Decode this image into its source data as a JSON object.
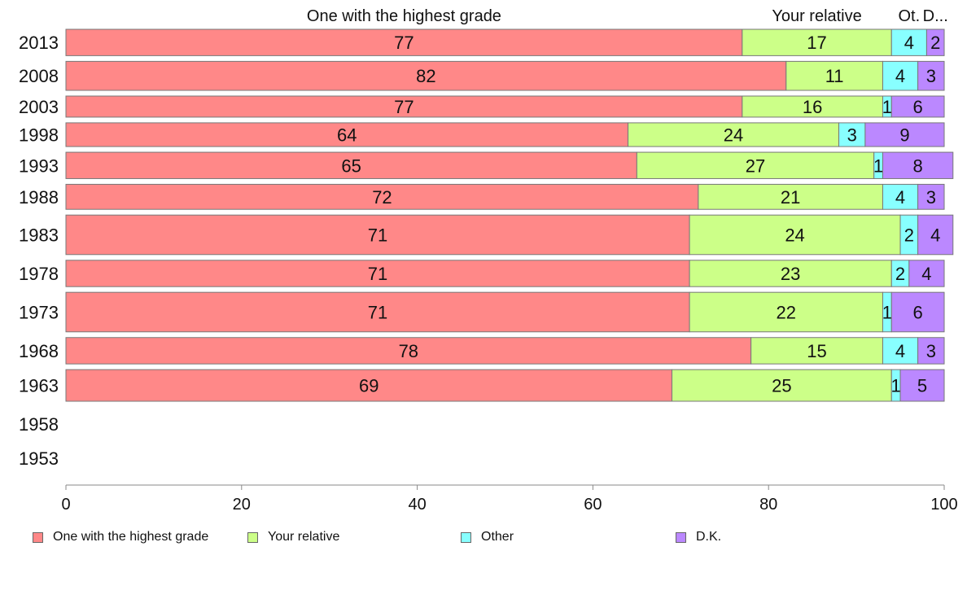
{
  "chart_data": {
    "type": "bar",
    "orientation": "horizontal",
    "stacked": true,
    "categories": [
      "2013",
      "2008",
      "2003",
      "1998",
      "1993",
      "1988",
      "1983",
      "1978",
      "1973",
      "1968",
      "1963",
      "1958",
      "1953"
    ],
    "series": [
      {
        "name": "One with the highest grade",
        "color": "#ff8888",
        "values": [
          77,
          82,
          77,
          64,
          65,
          72,
          71,
          71,
          71,
          78,
          69,
          null,
          null
        ],
        "top_label": "One with the highest grade"
      },
      {
        "name": "Your relative",
        "color": "#ccff88",
        "values": [
          17,
          11,
          16,
          24,
          27,
          21,
          24,
          23,
          22,
          15,
          25,
          null,
          null
        ],
        "top_label": "Your relative"
      },
      {
        "name": "Other",
        "color": "#88ffff",
        "values": [
          4,
          4,
          1,
          3,
          1,
          4,
          2,
          2,
          1,
          4,
          1,
          null,
          null
        ],
        "top_label": "Ot."
      },
      {
        "name": "D.K.",
        "color": "#bb88ff",
        "values": [
          2,
          3,
          6,
          9,
          8,
          3,
          4,
          4,
          6,
          3,
          5,
          null,
          null
        ],
        "top_label": "D..."
      }
    ],
    "data_labels": [
      [
        "77",
        "17",
        "4",
        "2"
      ],
      [
        "82",
        "11",
        "4",
        "3"
      ],
      [
        "77",
        "16",
        "1",
        "6"
      ],
      [
        "64",
        "24",
        "3",
        "9"
      ],
      [
        "65",
        "27",
        "1",
        "8"
      ],
      [
        "72",
        "21",
        "4",
        "3"
      ],
      [
        "71",
        "24",
        "2",
        "4"
      ],
      [
        "71",
        "23",
        "2",
        "4"
      ],
      [
        "71",
        "22",
        "1",
        "6"
      ],
      [
        "78",
        "15",
        "4",
        "3"
      ],
      [
        "69",
        "25",
        "1",
        "5"
      ],
      [],
      []
    ],
    "sample_size_weights": [
      1.0,
      1.1,
      0.8,
      0.9,
      1.0,
      0.95,
      1.5,
      1.0,
      1.5,
      1.0,
      1.2,
      0,
      0
    ],
    "xlim": [
      0,
      100
    ],
    "xticks": [
      "0",
      "20",
      "40",
      "60",
      "80",
      "100"
    ],
    "xlabel": "",
    "ylabel": "",
    "title": "",
    "grid": false,
    "legend_position": "bottom"
  }
}
